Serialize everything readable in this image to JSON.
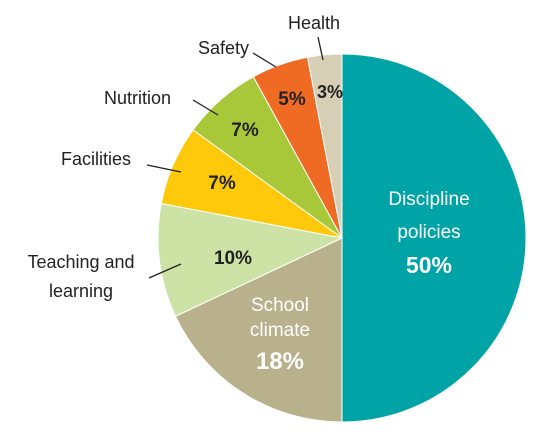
{
  "chart_data": {
    "type": "pie",
    "title": "",
    "slices": [
      {
        "label": "Discipline policies",
        "value": 50,
        "value_label": "50%",
        "color": "#00a4a6"
      },
      {
        "label": "School climate",
        "value": 18,
        "value_label": "18%",
        "color": "#b9b08c"
      },
      {
        "label": "Teaching and learning",
        "value": 10,
        "value_label": "10%",
        "color": "#cde3a5"
      },
      {
        "label": "Facilities",
        "value": 7,
        "value_label": "7%",
        "color": "#fdc90a"
      },
      {
        "label": "Nutrition",
        "value": 7,
        "value_label": "7%",
        "color": "#a8c83a"
      },
      {
        "label": "Safety",
        "value": 5,
        "value_label": "5%",
        "color": "#ef6b23"
      },
      {
        "label": "Health",
        "value": 3,
        "value_label": "3%",
        "color": "#d6ceb5"
      }
    ]
  }
}
